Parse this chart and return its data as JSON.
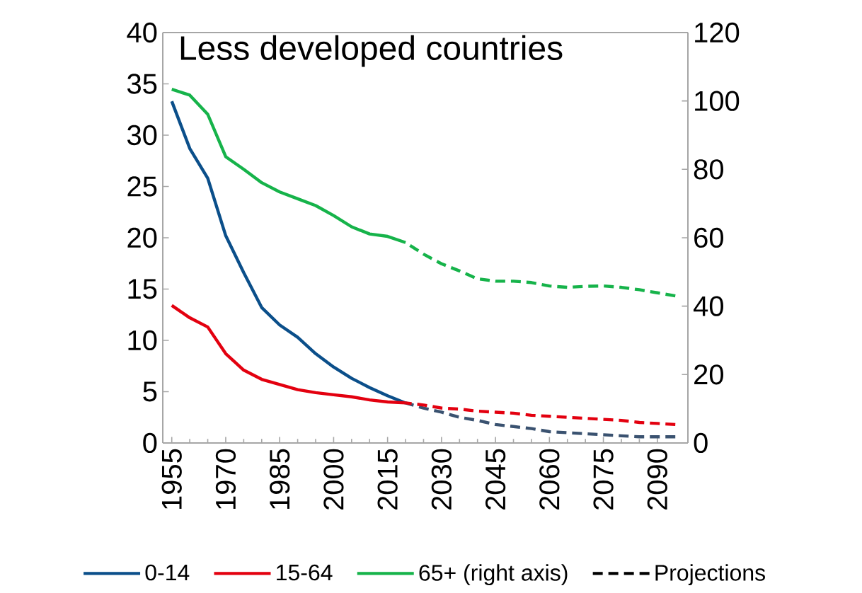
{
  "chart_data": {
    "type": "line",
    "title": "Less developed countries",
    "xlim": [
      1952.5,
      2098.5
    ],
    "xticks": [
      1955,
      1970,
      1985,
      2000,
      2015,
      2030,
      2045,
      2060,
      2075,
      2090
    ],
    "ylim": [
      0,
      40
    ],
    "yticks": [
      0,
      5,
      10,
      15,
      20,
      25,
      30,
      35,
      40
    ],
    "y2lim": [
      0,
      120
    ],
    "y2ticks": [
      0,
      20,
      40,
      60,
      80,
      100,
      120
    ],
    "legend": "bottom",
    "grid": false,
    "marker": "none",
    "annotations": [
      "Projections"
    ],
    "series": [
      {
        "name": "0-14",
        "color": "#0b4f8a",
        "line_style": "solid",
        "x": [
          1955,
          1960,
          1965,
          1970,
          1975,
          1980,
          1985,
          1990,
          1995,
          2000,
          2005,
          2010,
          2015,
          2020
        ],
        "values": [
          33.3,
          28.7,
          25.8,
          20.2,
          16.6,
          13.2,
          11.5,
          10.3,
          8.7,
          7.4,
          6.3,
          5.4,
          4.6,
          3.9
        ]
      },
      {
        "name": "15-64",
        "color": "#e3000f",
        "line_style": "solid",
        "x": [
          1955,
          1960,
          1965,
          1970,
          1975,
          1980,
          1985,
          1990,
          1995,
          2000,
          2005,
          2010,
          2015,
          2020
        ],
        "values": [
          13.4,
          12.2,
          11.3,
          8.7,
          7.1,
          6.2,
          5.7,
          5.2,
          4.9,
          4.7,
          4.5,
          4.2,
          4.0,
          3.9
        ]
      },
      {
        "name": "65+ (right axis)",
        "color": "#16b34a",
        "line_style": "solid",
        "axis": "y2",
        "x": [
          1955,
          1960,
          1965,
          1970,
          1975,
          1980,
          1985,
          1990,
          1995,
          2000,
          2005,
          2010,
          2015,
          2020
        ],
        "values": [
          103.4,
          101.7,
          96.1,
          83.7,
          80.0,
          76.1,
          73.4,
          71.4,
          69.4,
          66.5,
          63.2,
          61.1,
          60.4,
          58.6
        ]
      },
      {
        "color": "#3a5270",
        "line_style": "dashed",
        "x": [
          2020,
          2025,
          2030,
          2035,
          2040,
          2045,
          2050,
          2055,
          2060,
          2065,
          2070,
          2075,
          2080,
          2085,
          2090,
          2095
        ],
        "values": [
          3.9,
          3.4,
          3.0,
          2.5,
          2.2,
          1.8,
          1.6,
          1.4,
          1.1,
          1.0,
          0.9,
          0.8,
          0.7,
          0.6,
          0.6,
          0.6
        ]
      },
      {
        "color": "#e3000f",
        "line_style": "dashed",
        "x": [
          2020,
          2025,
          2030,
          2035,
          2040,
          2045,
          2050,
          2055,
          2060,
          2065,
          2070,
          2075,
          2080,
          2085,
          2090,
          2095
        ],
        "values": [
          3.9,
          3.7,
          3.4,
          3.3,
          3.1,
          3.0,
          2.9,
          2.7,
          2.6,
          2.5,
          2.4,
          2.3,
          2.2,
          2.0,
          1.9,
          1.8
        ]
      },
      {
        "color": "#16b34a",
        "line_style": "dashed",
        "axis": "y2",
        "x": [
          2020,
          2025,
          2030,
          2035,
          2040,
          2045,
          2050,
          2055,
          2060,
          2065,
          2070,
          2075,
          2080,
          2085,
          2090,
          2095
        ],
        "values": [
          58.6,
          55.2,
          52.4,
          50.3,
          48.0,
          47.3,
          47.3,
          46.9,
          45.9,
          45.5,
          45.8,
          45.9,
          45.5,
          44.8,
          43.9,
          43.0
        ]
      }
    ]
  }
}
